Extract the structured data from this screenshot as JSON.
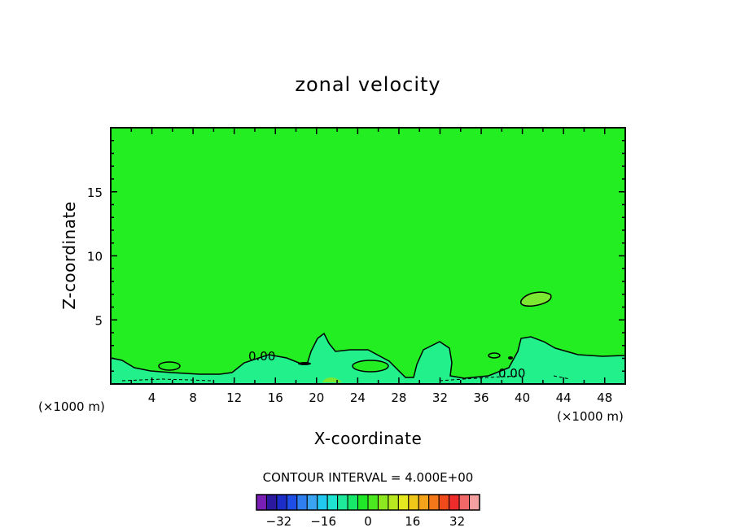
{
  "chart_data": {
    "type": "contour",
    "title": "zonal velocity",
    "xlabel": "X-coordinate",
    "ylabel": "Z-coordinate",
    "x_units": "(×1000 m)",
    "xlim": [
      0,
      50
    ],
    "ylim": [
      0,
      20
    ],
    "x_ticks": [
      4,
      8,
      12,
      16,
      20,
      24,
      28,
      32,
      36,
      40,
      44,
      48
    ],
    "y_ticks": [
      5,
      10,
      15
    ],
    "contour_labels": [
      "0.00",
      "0.00"
    ],
    "contour_interval_text": "CONTOUR INTERVAL = 4.000E+00",
    "colorbar": {
      "tick_labels": [
        "-32",
        "-16",
        "0",
        "16",
        "32"
      ],
      "tick_values": [
        -32,
        -16,
        0,
        16,
        32
      ],
      "levels_min": -40,
      "levels_max": 40,
      "level_step": 4,
      "colors": [
        "#7a1fb5",
        "#2b1aa0",
        "#1c2dc8",
        "#1f4ee6",
        "#2f7ff0",
        "#3aa4f2",
        "#21c8f0",
        "#1fe2d0",
        "#1ee89a",
        "#18e86a",
        "#20e828",
        "#4ce820",
        "#8ee820",
        "#b8e820",
        "#e6e820",
        "#f0c81a",
        "#f4a31a",
        "#f4781a",
        "#f04a1a",
        "#ee2c2c",
        "#f06868",
        "#f4a0a0"
      ]
    },
    "field_colors": {
      "background": "#22ee22",
      "near_zero": "#22f08a",
      "weak_positive": "#7ce832"
    }
  }
}
